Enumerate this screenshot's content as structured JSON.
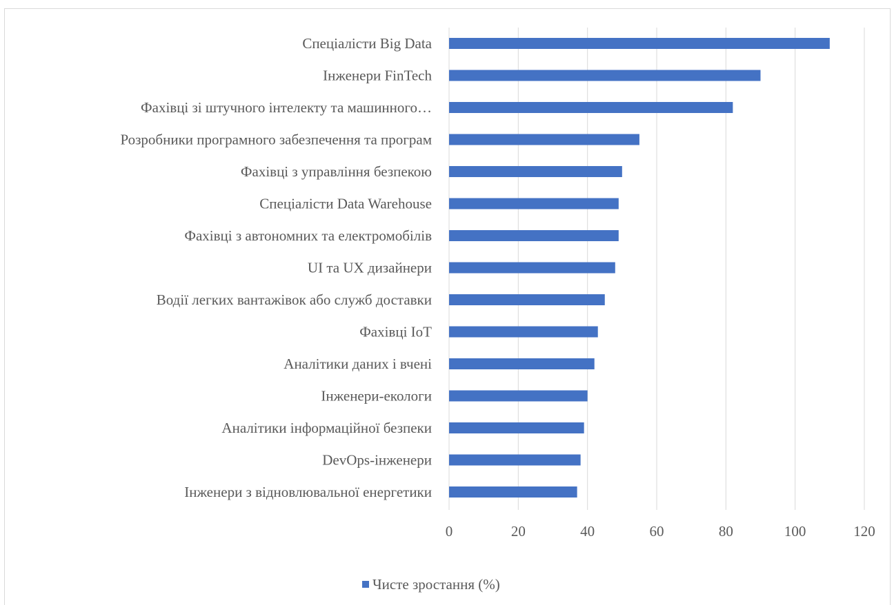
{
  "chart_data": {
    "type": "bar",
    "orientation": "horizontal",
    "categories": [
      "Спеціалісти Big Data",
      "Інженери FinTech",
      "Фахівці зі штучного інтелекту та машинного…",
      "Розробники програмного забезпечення та програм",
      "Фахівці з управління безпекою",
      "Спеціалісти  Data Warehouse",
      "Фахівці з автономних та електромобілів",
      "UI та UX дизайнери",
      "Водії легких вантажівок або служб доставки",
      "Фахівці IoT",
      "Аналітики даних і вчені",
      "Інженери-екологи",
      "Аналітики інформаційної безпеки",
      "DevOps-інженери",
      "Інженери з відновлювальної енергетики"
    ],
    "series": [
      {
        "name": "Чисте зростання (%)",
        "values": [
          110,
          90,
          82,
          55,
          50,
          49,
          49,
          48,
          45,
          43,
          42,
          40,
          39,
          38,
          37
        ],
        "color": "#4472c4"
      }
    ],
    "xlim": [
      0,
      120
    ],
    "xticks": [
      0,
      20,
      40,
      60,
      80,
      100,
      120
    ],
    "grid": true,
    "legend_position": "bottom",
    "colors": {
      "bar": "#4472c4",
      "grid": "#d9d9d9",
      "text": "#595959"
    }
  }
}
